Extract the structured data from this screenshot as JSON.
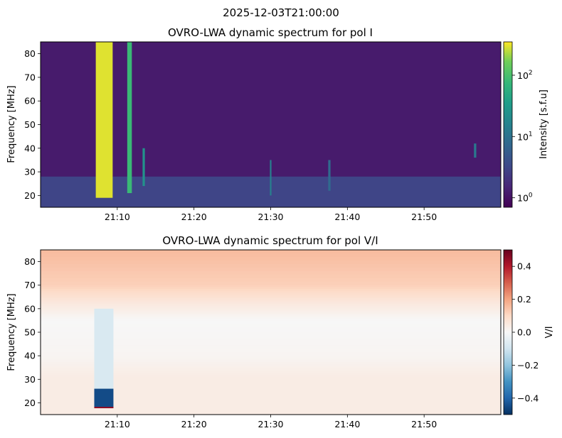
{
  "figure": {
    "suptitle": "2025-12-03T21:00:00"
  },
  "chart_data": [
    {
      "type": "heatmap",
      "title": "OVRO-LWA dynamic spectrum for pol I",
      "xlabel": "",
      "ylabel": "Frequency [MHz]",
      "x_range": [
        "21:00:00",
        "21:60:00"
      ],
      "x_ticks": [
        "21:10",
        "21:20",
        "21:30",
        "21:40",
        "21:50"
      ],
      "ylim": [
        15,
        85
      ],
      "y_ticks": [
        20,
        30,
        40,
        50,
        60,
        70,
        80
      ],
      "colormap": "viridis",
      "colorbar": {
        "label": "Intensity [s.f.u]",
        "scale": "log",
        "range": [
          0.7,
          350
        ],
        "ticks": [
          {
            "value": 1,
            "base": "10",
            "exp": "0"
          },
          {
            "value": 10,
            "base": "10",
            "exp": "1"
          },
          {
            "value": 100,
            "base": "10",
            "exp": "2"
          }
        ]
      },
      "background_intensity": 1.2,
      "low_frequency_band_mhz": [
        15,
        28
      ],
      "bursts": [
        {
          "start_min": 7.2,
          "end_min": 9.4,
          "f_low": 19,
          "f_high": 85,
          "intensity": 300
        },
        {
          "start_min": 11.3,
          "end_min": 11.9,
          "f_low": 21,
          "f_high": 85,
          "intensity": 80
        },
        {
          "start_min": 13.3,
          "end_min": 13.6,
          "f_low": 24,
          "f_high": 40,
          "intensity": 25
        },
        {
          "start_min": 29.9,
          "end_min": 30.1,
          "f_low": 20,
          "f_high": 35,
          "intensity": 15
        },
        {
          "start_min": 37.5,
          "end_min": 37.8,
          "f_low": 22,
          "f_high": 35,
          "intensity": 8
        },
        {
          "start_min": 56.5,
          "end_min": 56.8,
          "f_low": 36,
          "f_high": 42,
          "intensity": 12
        }
      ]
    },
    {
      "type": "heatmap",
      "title": "OVRO-LWA dynamic spectrum for pol V/I",
      "xlabel": "",
      "ylabel": "Frequency [MHz]",
      "x_range": [
        "21:00:00",
        "21:60:00"
      ],
      "x_ticks": [
        "21:10",
        "21:20",
        "21:30",
        "21:40",
        "21:50"
      ],
      "ylim": [
        15,
        85
      ],
      "y_ticks": [
        20,
        30,
        40,
        50,
        60,
        70,
        80
      ],
      "colormap": "RdBu_r",
      "colorbar": {
        "label": "V/I",
        "scale": "linear",
        "range": [
          -0.5,
          0.5
        ],
        "ticks": [
          "0.4",
          "0.2",
          "0.0",
          "−0.2",
          "−0.4"
        ],
        "tick_values": [
          0.4,
          0.2,
          0.0,
          -0.2,
          -0.4
        ]
      },
      "freq_profile": [
        {
          "f": 85,
          "v": 0.16
        },
        {
          "f": 70,
          "v": 0.12
        },
        {
          "f": 62,
          "v": 0.05
        },
        {
          "f": 55,
          "v": 0.0
        },
        {
          "f": 40,
          "v": 0.01
        },
        {
          "f": 31,
          "v": 0.04
        },
        {
          "f": 15,
          "v": 0.04
        }
      ],
      "bursts": [
        {
          "start_min": 7.0,
          "end_min": 9.5,
          "f_low": 18,
          "f_high": 26,
          "v": -0.45
        },
        {
          "start_min": 7.0,
          "end_min": 9.5,
          "f_low": 26,
          "f_high": 60,
          "v": -0.08
        },
        {
          "start_min": 7.0,
          "end_min": 9.5,
          "f_low": 17.7,
          "f_high": 18.3,
          "v": 0.45
        }
      ]
    }
  ]
}
